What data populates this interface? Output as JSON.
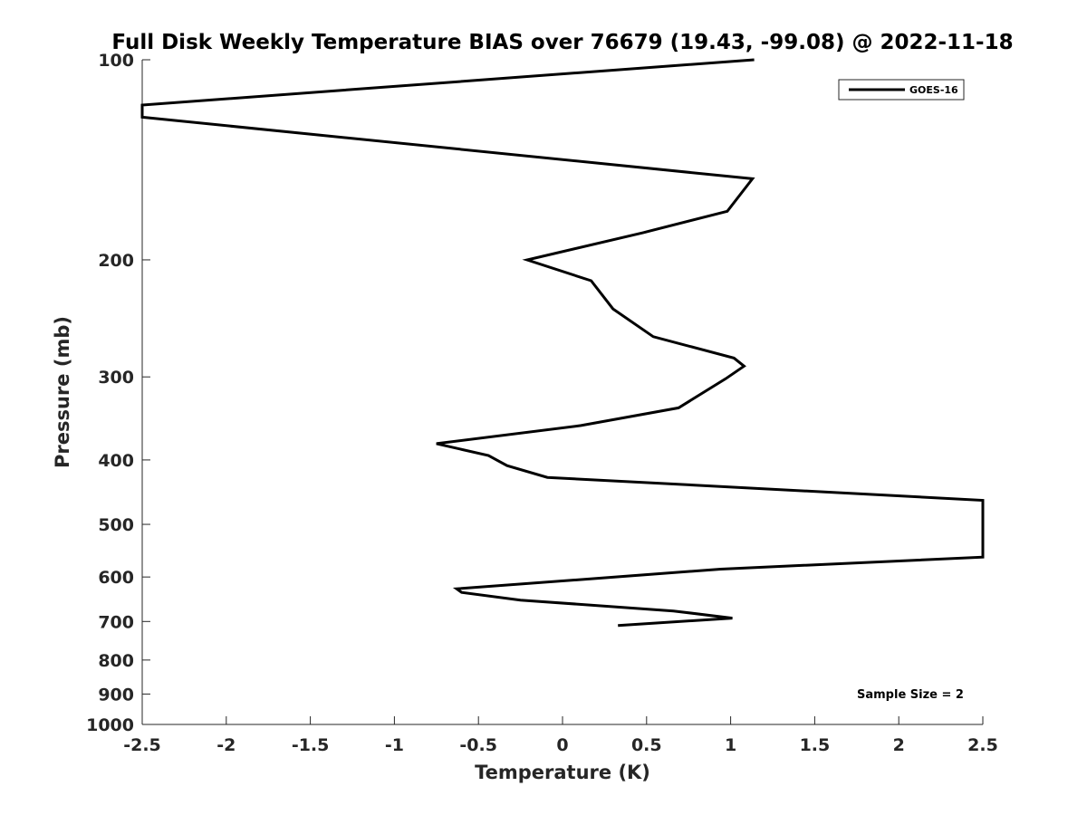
{
  "chart_data": {
    "type": "line",
    "title": "Full Disk Weekly Temperature BIAS over 76679 (19.43, -99.08) @ 2022-11-18",
    "xlabel": "Temperature (K)",
    "ylabel": "Pressure (mb)",
    "xlim": [
      -2.5,
      2.5
    ],
    "ylim": [
      100,
      1000
    ],
    "y_scale": "log",
    "y_reversed": true,
    "x_ticks": [
      "-2.5",
      "-2",
      "-1.5",
      "-1",
      "-0.5",
      "0",
      "0.5",
      "1",
      "1.5",
      "2",
      "2.5"
    ],
    "y_ticks": [
      "100",
      "200",
      "300",
      "400",
      "500",
      "600",
      "700",
      "800",
      "900",
      "1000"
    ],
    "grid": false,
    "legend_position": "top-right",
    "line_color": "#000000",
    "series": [
      {
        "name": "GOES-16",
        "x": [
          1.14,
          -2.5,
          -2.5,
          1.13,
          0.98,
          0.48,
          -0.21,
          0.17,
          0.3,
          0.54,
          1.02,
          1.08,
          0.97,
          0.69,
          0.11,
          -0.75,
          -0.44,
          -0.33,
          -0.09,
          2.5,
          2.5,
          0.94,
          -0.63,
          -0.6,
          -0.25,
          0.66,
          1.01,
          0.33
        ],
        "y": [
          100,
          117,
          122,
          151,
          169,
          182,
          200,
          215,
          237,
          261,
          281,
          289,
          302,
          334,
          355,
          378,
          394,
          408,
          425,
          460,
          560,
          584,
          625,
          633,
          650,
          675,
          692,
          710
        ]
      }
    ],
    "annotations": [
      "Sample Size = 2"
    ]
  }
}
